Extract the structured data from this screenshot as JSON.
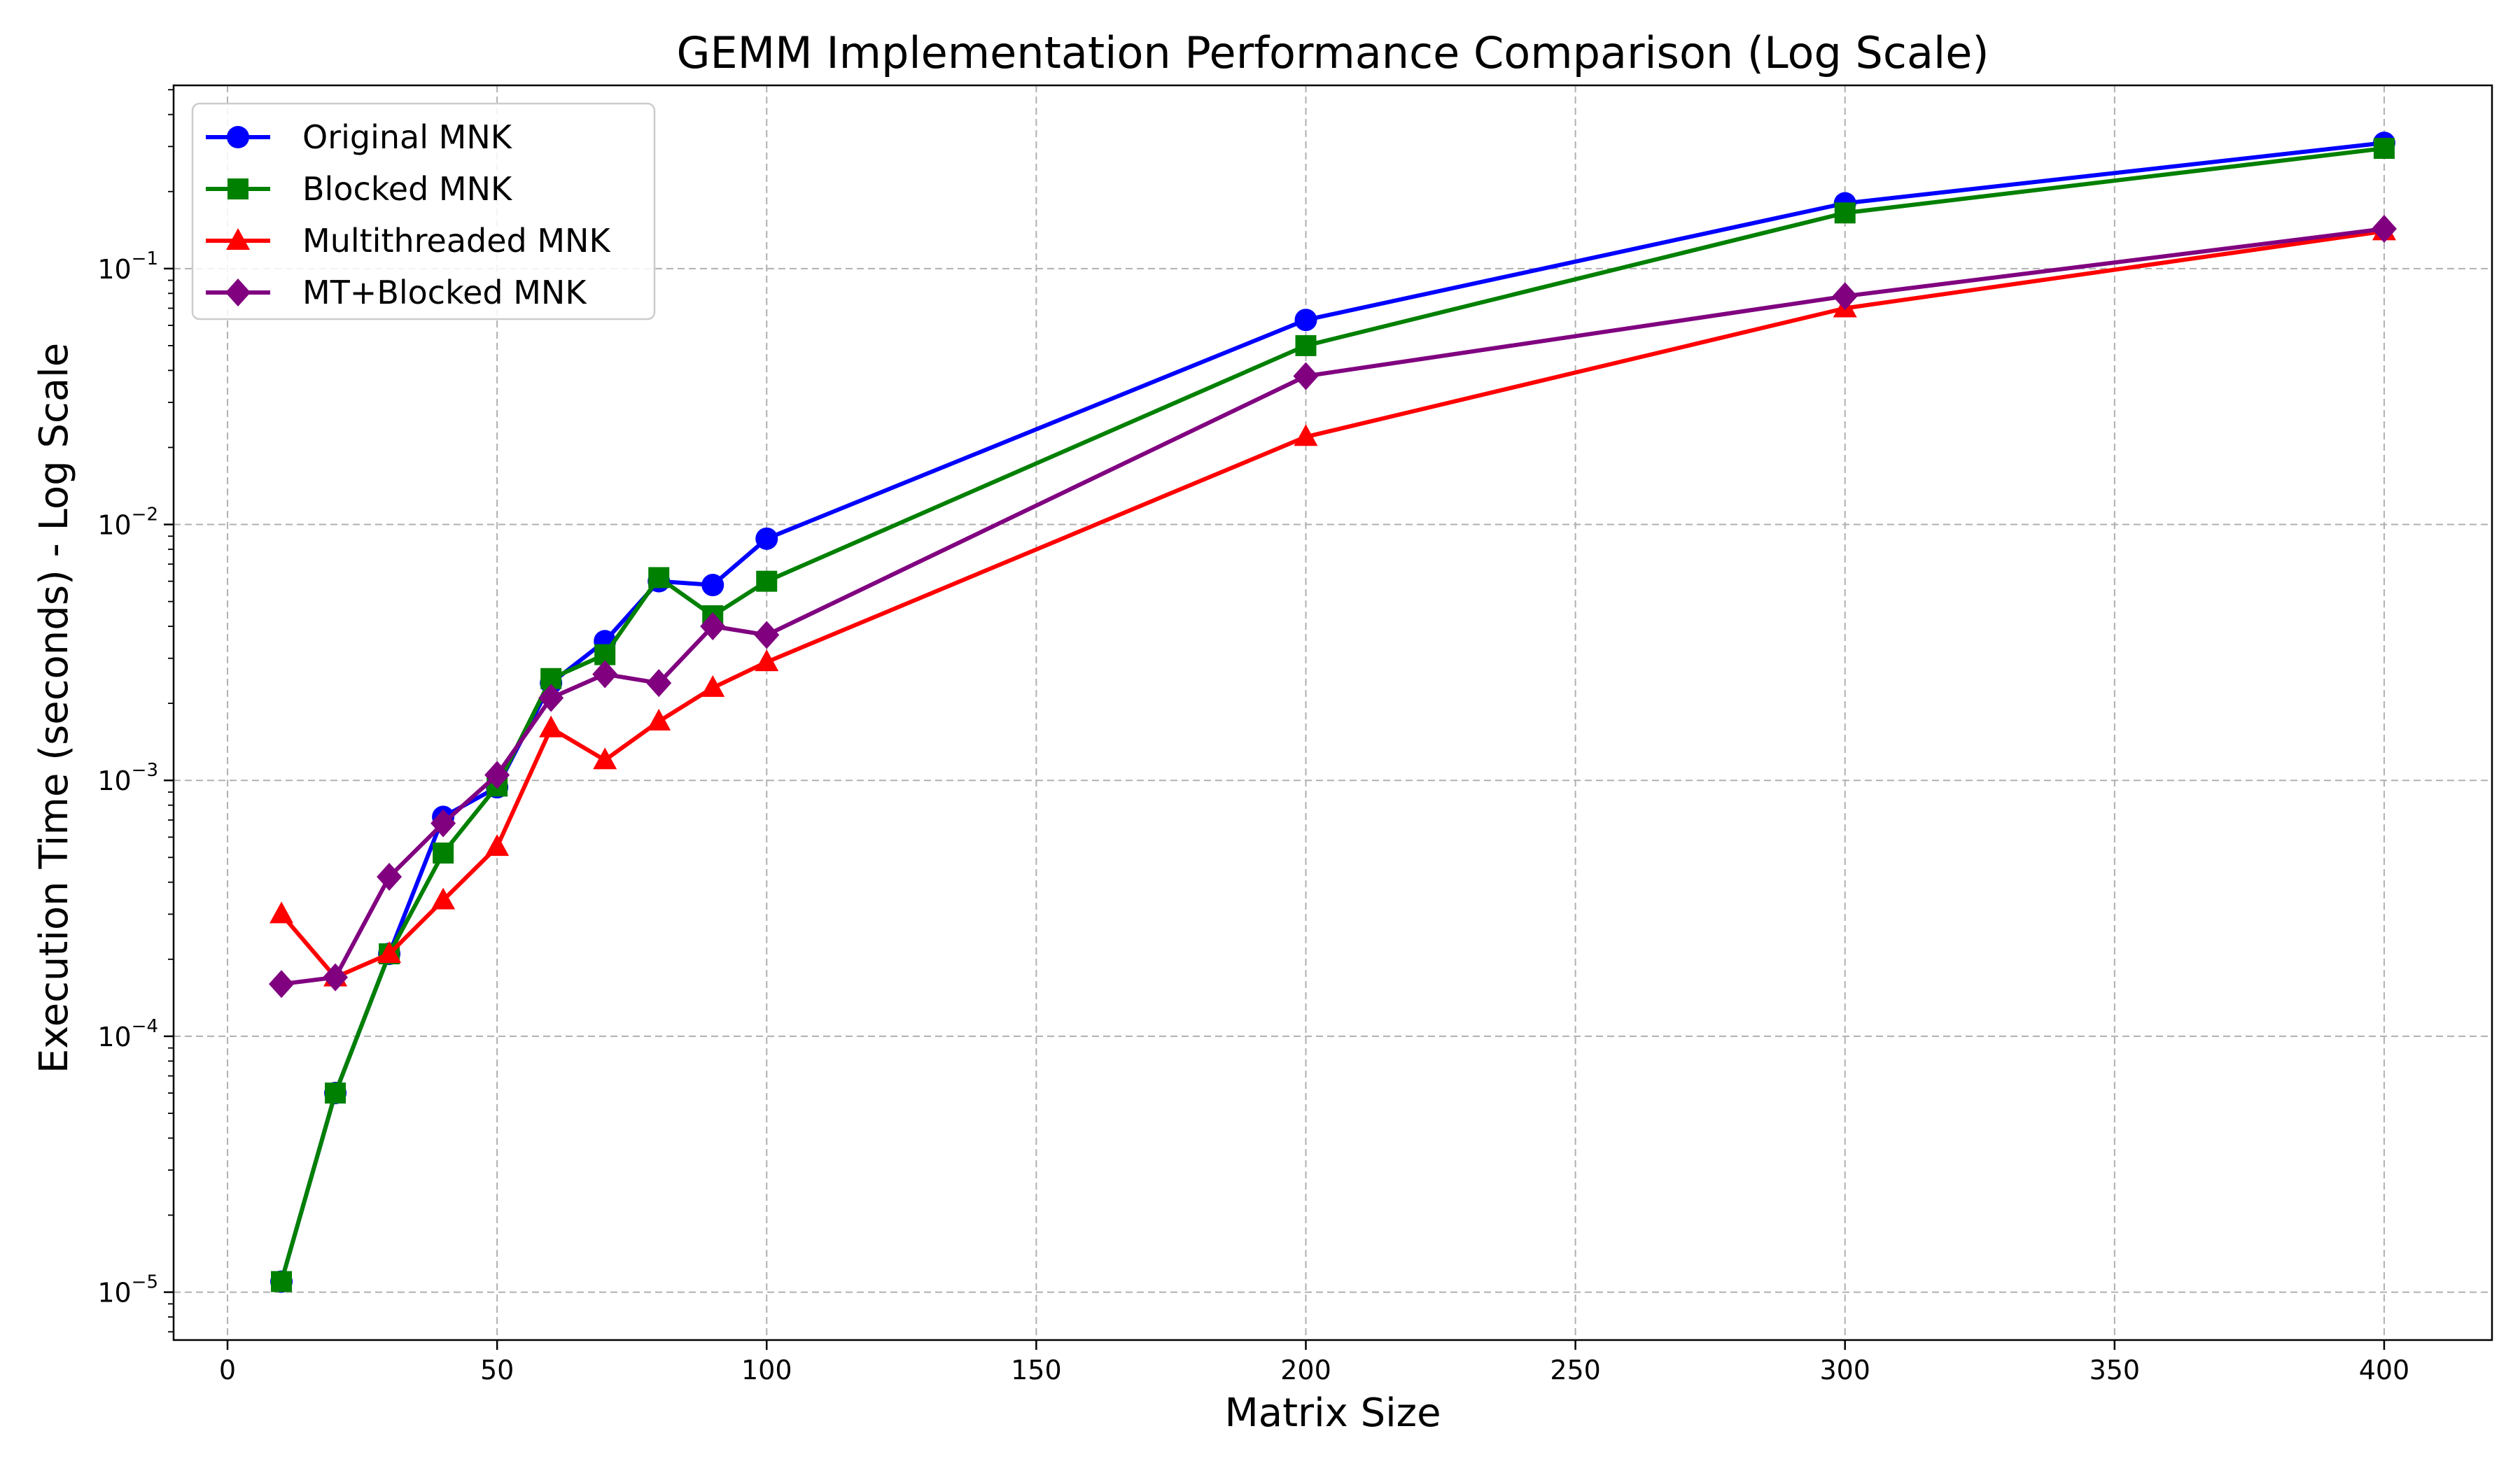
{
  "chart_data": {
    "type": "line",
    "title": "GEMM Implementation Performance Comparison (Log Scale)",
    "xlabel": "Matrix Size",
    "ylabel": "Execution Time (seconds) - Log Scale",
    "yscale": "log",
    "xlim": [
      -10,
      420
    ],
    "ylim": [
      6.5e-06,
      0.52
    ],
    "xticks": [
      "0",
      "50",
      "100",
      "150",
      "200",
      "250",
      "300",
      "350",
      "400"
    ],
    "yticks": [
      {
        "base": "10",
        "exp": "−5"
      },
      {
        "base": "10",
        "exp": "−4"
      },
      {
        "base": "10",
        "exp": "−3"
      },
      {
        "base": "10",
        "exp": "−2"
      },
      {
        "base": "10",
        "exp": "−1"
      }
    ],
    "grid": true,
    "legend_position": "top-left",
    "x": [
      10,
      20,
      30,
      40,
      50,
      60,
      70,
      80,
      90,
      100,
      200,
      300,
      400
    ],
    "series": [
      {
        "name": "Original MNK",
        "color": "#0000ff",
        "marker": "circle",
        "values": [
          1.1e-05,
          6e-05,
          0.00021,
          0.00072,
          0.00094,
          0.0024,
          0.0035,
          0.006,
          0.0058,
          0.0088,
          0.063,
          0.18,
          0.31
        ]
      },
      {
        "name": "Blocked MNK",
        "color": "#008000",
        "marker": "square",
        "values": [
          1.1e-05,
          6e-05,
          0.00021,
          0.00052,
          0.00095,
          0.0025,
          0.0031,
          0.0062,
          0.0044,
          0.006,
          0.05,
          0.165,
          0.295
        ]
      },
      {
        "name": "Multithreaded MNK",
        "color": "#ff0000",
        "marker": "triangle",
        "values": [
          0.0003,
          0.00017,
          0.00021,
          0.00034,
          0.00055,
          0.0016,
          0.0012,
          0.0017,
          0.0023,
          0.0029,
          0.022,
          0.07,
          0.14
        ]
      },
      {
        "name": "MT+Blocked MNK",
        "color": "#800080",
        "marker": "diamond",
        "values": [
          0.00016,
          0.00017,
          0.00042,
          0.00068,
          0.00105,
          0.0021,
          0.0026,
          0.0024,
          0.004,
          0.0037,
          0.038,
          0.078,
          0.143
        ]
      }
    ]
  }
}
